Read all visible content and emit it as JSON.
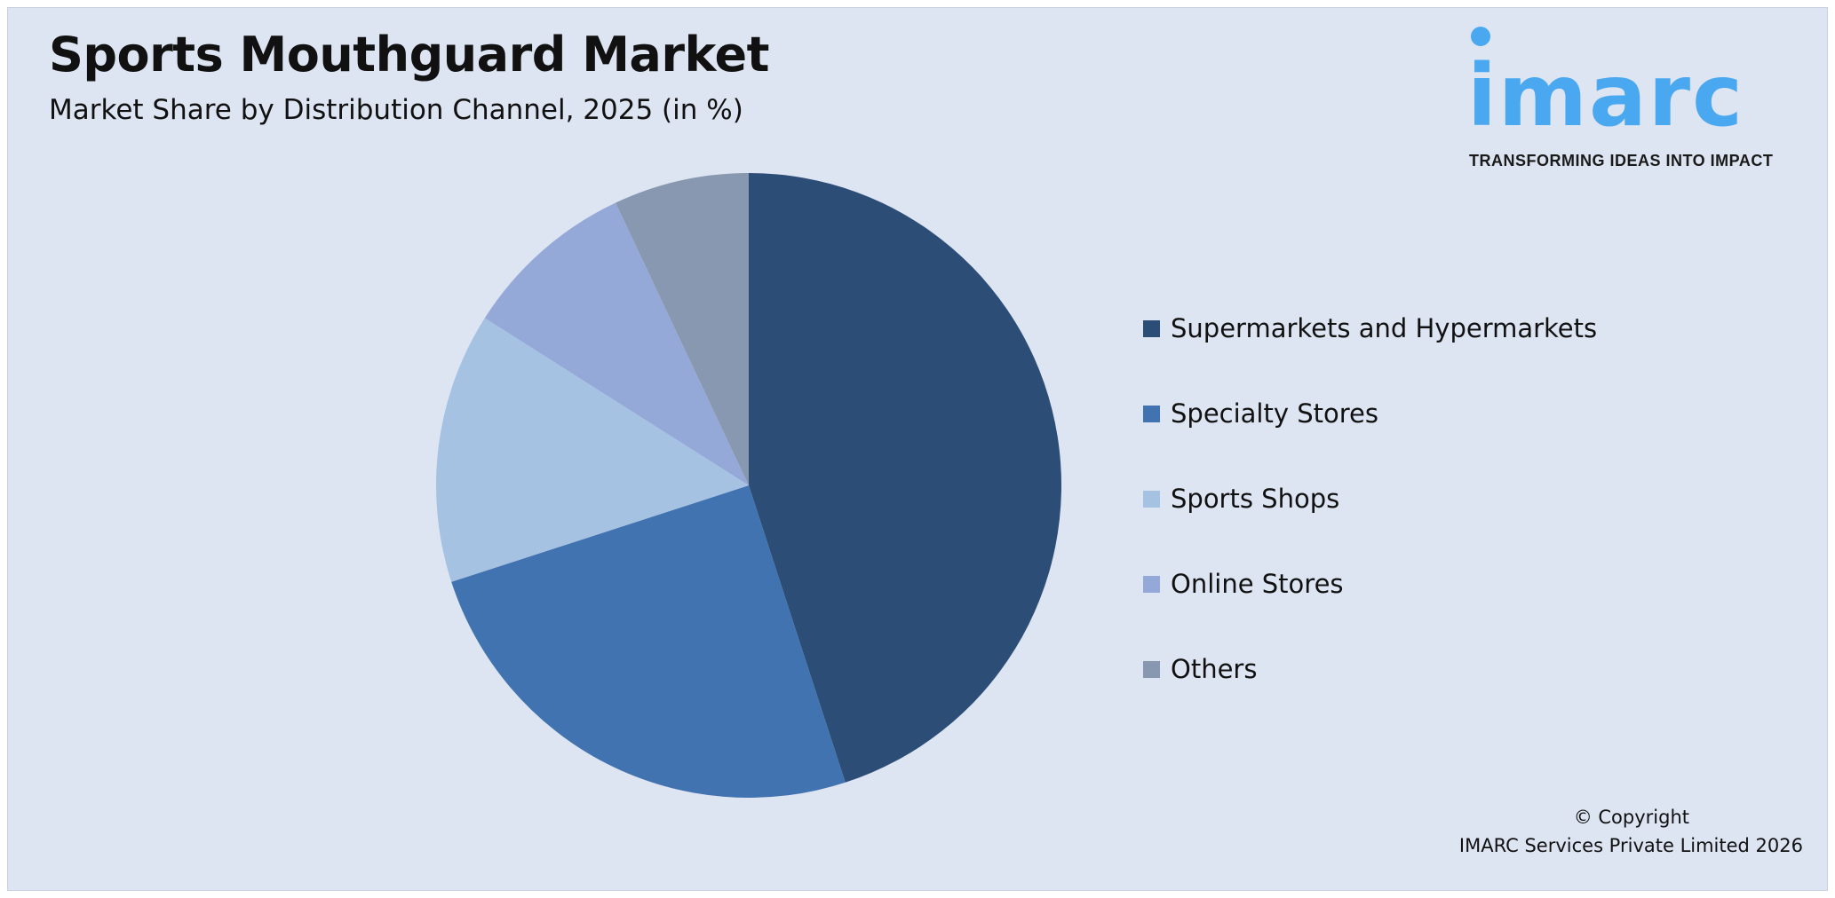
{
  "header": {
    "title": "Sports Mouthguard Market",
    "subtitle": "Market Share by Distribution Channel, 2025 (in %)"
  },
  "logo": {
    "word": "imarc",
    "tagline": "TRANSFORMING IDEAS INTO IMPACT",
    "color": "#4aa8f0"
  },
  "chart_data": {
    "type": "pie",
    "title": "Sports Mouthguard Market",
    "subtitle": "Market Share by Distribution Channel, 2025 (in %)",
    "categories": [
      "Supermarkets and Hypermarkets",
      "Specialty Stores",
      "Sports Shops",
      "Online Stores",
      "Others"
    ],
    "values": [
      45,
      25,
      14,
      9,
      7
    ],
    "colors": [
      "#2c4d75",
      "#4073b0",
      "#a5c2e2",
      "#95a9d8",
      "#8898b0"
    ],
    "start_angle": "12 o'clock",
    "direction": "clockwise",
    "legend_position": "right"
  },
  "footer": {
    "copyright": "© Copyright",
    "company": "IMARC Services Private Limited 2026"
  }
}
